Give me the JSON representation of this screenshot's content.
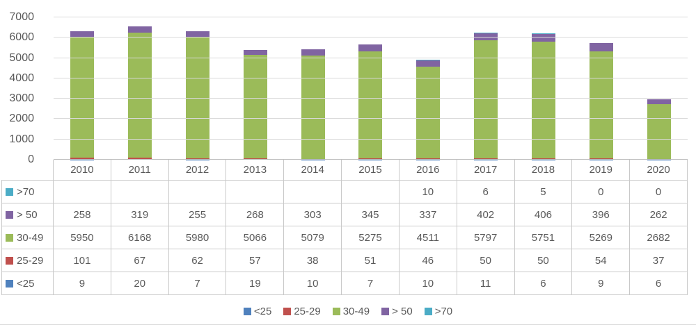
{
  "chart_data": {
    "type": "bar",
    "stacked": true,
    "title": "",
    "xlabel": "",
    "ylabel": "",
    "categories": [
      "2010",
      "2011",
      "2012",
      "2013",
      "2014",
      "2015",
      "2016",
      "2017",
      "2018",
      "2019",
      "2020"
    ],
    "series": [
      {
        "name": "<25",
        "color": "#4F81BD",
        "values": [
          9,
          20,
          7,
          19,
          10,
          7,
          10,
          11,
          6,
          9,
          6
        ]
      },
      {
        "name": "25-29",
        "color": "#C0504D",
        "values": [
          101,
          67,
          62,
          57,
          38,
          51,
          46,
          50,
          50,
          54,
          37
        ]
      },
      {
        "name": "30-49",
        "color": "#9BBB59",
        "values": [
          5950,
          6168,
          5980,
          5066,
          5079,
          5275,
          4511,
          5797,
          5751,
          5269,
          2682
        ]
      },
      {
        "name": "> 50",
        "color": "#8064A2",
        "values": [
          258,
          319,
          255,
          268,
          303,
          345,
          337,
          402,
          406,
          396,
          262
        ]
      },
      {
        "name": ">70",
        "color": "#4BACC6",
        "values": [
          0,
          0,
          0,
          0,
          0,
          0,
          10,
          6,
          5,
          0,
          0
        ]
      }
    ],
    "ylim": [
      0,
      7000
    ],
    "yticks": [
      0,
      1000,
      2000,
      3000,
      4000,
      5000,
      6000,
      7000
    ],
    "grid": true,
    "legend_position": "bottom"
  },
  "table": {
    "rows": [
      {
        "label": ">70",
        "color": "#4BACC6",
        "values": [
          "",
          "",
          "",
          "",
          "",
          "",
          "10",
          "6",
          "5",
          "0",
          "0"
        ]
      },
      {
        "label": "> 50",
        "color": "#8064A2",
        "values": [
          "258",
          "319",
          "255",
          "268",
          "303",
          "345",
          "337",
          "402",
          "406",
          "396",
          "262"
        ]
      },
      {
        "label": "30-49",
        "color": "#9BBB59",
        "values": [
          "5950",
          "6168",
          "5980",
          "5066",
          "5079",
          "5275",
          "4511",
          "5797",
          "5751",
          "5269",
          "2682"
        ]
      },
      {
        "label": "25-29",
        "color": "#C0504D",
        "values": [
          "101",
          "67",
          "62",
          "57",
          "38",
          "51",
          "46",
          "50",
          "50",
          "54",
          "37"
        ]
      },
      {
        "label": "<25",
        "color": "#4F81BD",
        "values": [
          "9",
          "20",
          "7",
          "19",
          "10",
          "7",
          "10",
          "11",
          "6",
          "9",
          "6"
        ]
      }
    ]
  },
  "legend": {
    "items": [
      {
        "label": "<25",
        "color": "#4F81BD"
      },
      {
        "label": "25-29",
        "color": "#C0504D"
      },
      {
        "label": "30-49",
        "color": "#9BBB59"
      },
      {
        "label": "> 50",
        "color": "#8064A2"
      },
      {
        "label": ">70",
        "color": "#4BACC6"
      }
    ]
  },
  "colors": {
    "text": "#595959",
    "gridline": "#D9D9D9",
    "table_border": "#C9C9C9"
  }
}
